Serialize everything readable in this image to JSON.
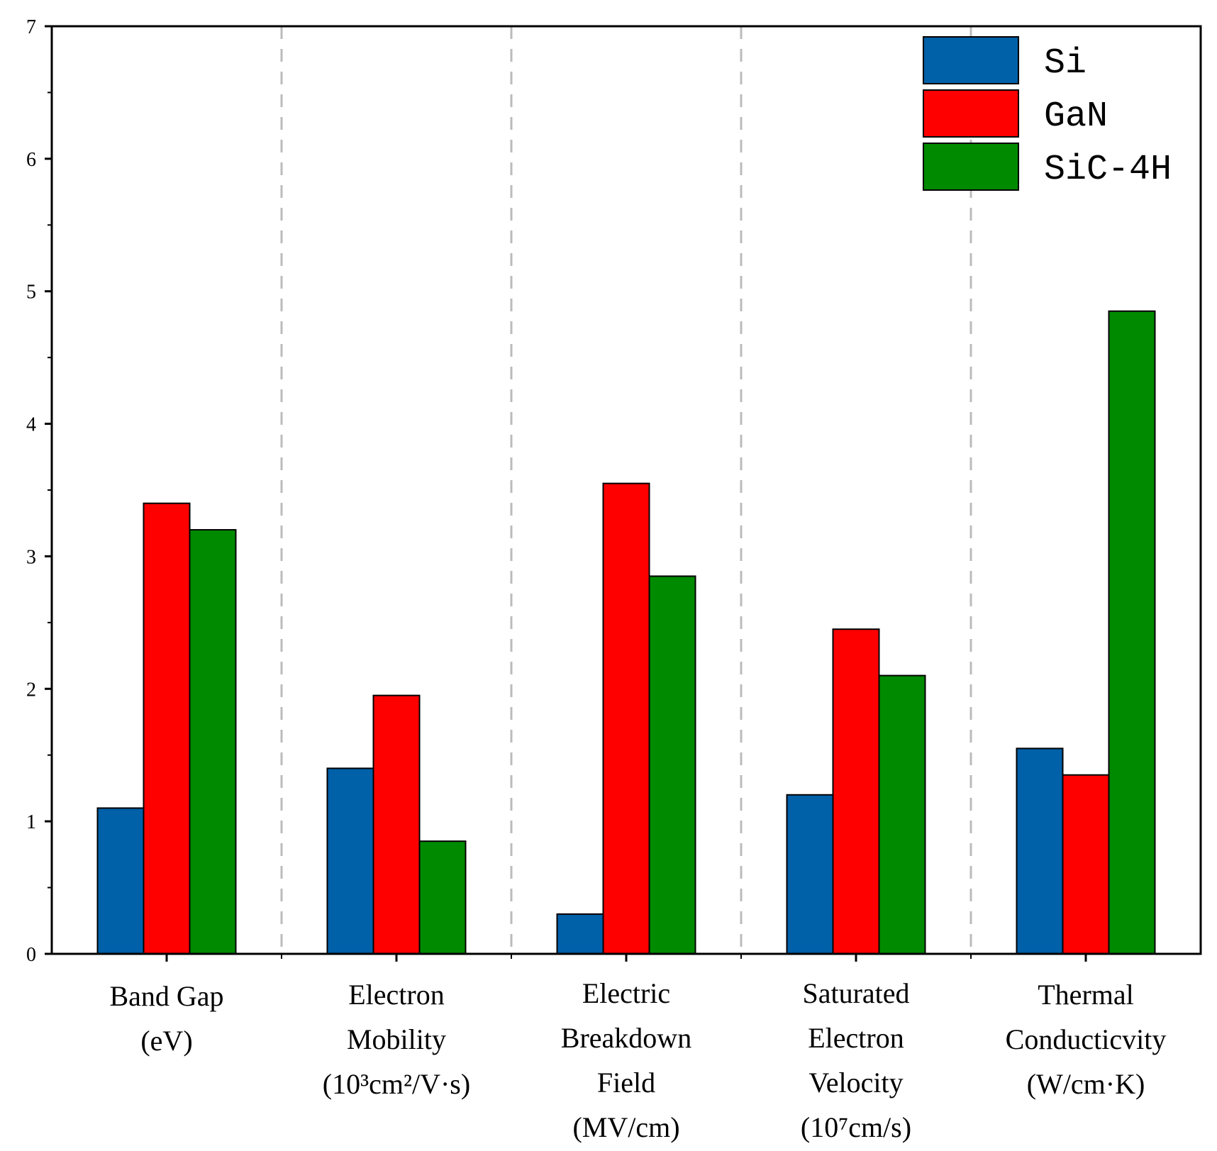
{
  "chart_data": {
    "type": "bar",
    "title": "",
    "xlabel": "",
    "ylabel": "",
    "ylim": [
      0,
      7
    ],
    "yticks": [
      "0",
      "1",
      "2",
      "3",
      "4",
      "5",
      "6",
      "7"
    ],
    "grid": false,
    "legend_position": "top-right",
    "categories": [
      {
        "lines": [
          "Band Gap",
          "(eV)"
        ]
      },
      {
        "lines": [
          "Electron",
          "Mobility",
          "(10³cm²/V·s)"
        ]
      },
      {
        "lines": [
          "Electric",
          "Breakdown",
          "Field",
          "(MV/cm)"
        ]
      },
      {
        "lines": [
          "Saturated",
          "Electron",
          "Velocity",
          "(10⁷cm/s)"
        ]
      },
      {
        "lines": [
          "Thermal",
          "Conducticvity",
          "(W/cm·K)"
        ]
      }
    ],
    "series": [
      {
        "name": "Si",
        "color": "#0060a8",
        "values": [
          1.1,
          1.4,
          0.3,
          1.2,
          1.55
        ]
      },
      {
        "name": "GaN",
        "color": "#ff0000",
        "values": [
          3.4,
          1.95,
          3.55,
          2.45,
          1.35
        ]
      },
      {
        "name": "SiC-4H",
        "color": "#008a00",
        "values": [
          3.2,
          0.85,
          2.85,
          2.1,
          4.85
        ]
      }
    ]
  }
}
